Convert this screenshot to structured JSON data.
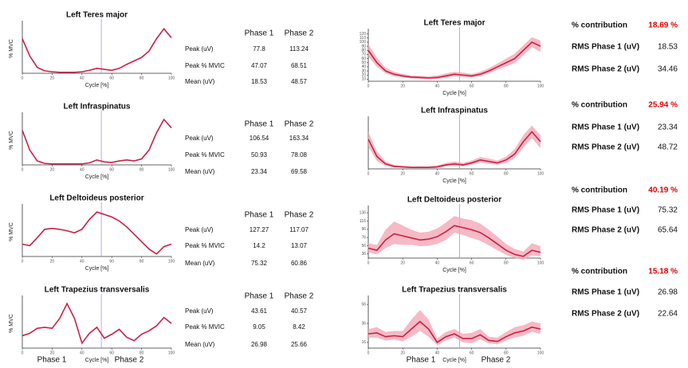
{
  "chart_data": [
    {
      "type": "line",
      "title": "Left Teres major",
      "xlabel": "Cycle [%]",
      "ylabel": "% MVC",
      "xlim": [
        0,
        100
      ],
      "xticks": [
        0,
        20,
        40,
        60,
        80,
        100
      ],
      "ylim": [
        0,
        100
      ],
      "phase_boundary": 53,
      "color": "#cc1f45",
      "x": [
        0,
        5,
        10,
        15,
        20,
        25,
        30,
        35,
        40,
        45,
        50,
        55,
        60,
        65,
        70,
        75,
        80,
        85,
        90,
        95,
        100
      ],
      "values": [
        70,
        35,
        12,
        5,
        3,
        2,
        2,
        2,
        3,
        6,
        10,
        8,
        6,
        10,
        18,
        25,
        32,
        45,
        70,
        90,
        72
      ]
    },
    {
      "type": "line",
      "title": "Left Infraspinatus",
      "xlabel": "Cycle [%]",
      "ylabel": "% MVC",
      "xlim": [
        0,
        100
      ],
      "xticks": [
        0,
        20,
        40,
        60,
        80,
        100
      ],
      "ylim": [
        0,
        100
      ],
      "phase_boundary": 53,
      "color": "#cc1f45",
      "x": [
        0,
        5,
        10,
        15,
        20,
        25,
        30,
        35,
        40,
        45,
        50,
        55,
        60,
        65,
        70,
        75,
        80,
        85,
        90,
        95,
        100
      ],
      "values": [
        70,
        30,
        8,
        3,
        2,
        2,
        2,
        2,
        2,
        4,
        10,
        6,
        5,
        8,
        10,
        8,
        12,
        30,
        65,
        92,
        75
      ]
    },
    {
      "type": "line",
      "title": "Left Deltoideus posterior",
      "xlabel": "Cycle [%]",
      "ylabel": "% MVC",
      "xlim": [
        0,
        100
      ],
      "xticks": [
        0,
        20,
        40,
        60,
        80,
        100
      ],
      "ylim": [
        0,
        100
      ],
      "phase_boundary": 53,
      "color": "#cc1f45",
      "x": [
        0,
        5,
        10,
        15,
        20,
        25,
        30,
        35,
        40,
        45,
        50,
        55,
        60,
        65,
        70,
        75,
        80,
        85,
        90,
        95,
        100
      ],
      "values": [
        25,
        22,
        38,
        55,
        57,
        55,
        52,
        48,
        55,
        75,
        90,
        85,
        80,
        72,
        60,
        45,
        30,
        15,
        5,
        20,
        25
      ]
    },
    {
      "type": "line",
      "title": "Left Trapezius transversalis",
      "xlabel": "Cycle [%]",
      "ylabel": "% MVC",
      "xlim": [
        0,
        100
      ],
      "xticks": [
        0,
        20,
        40,
        60,
        80,
        100
      ],
      "ylim": [
        0,
        100
      ],
      "phase_boundary": 53,
      "color": "#cc1f45",
      "x": [
        0,
        5,
        10,
        15,
        20,
        25,
        30,
        35,
        40,
        45,
        50,
        55,
        60,
        65,
        70,
        75,
        80,
        85,
        90,
        95,
        100
      ],
      "values": [
        25,
        30,
        40,
        42,
        40,
        60,
        90,
        60,
        10,
        30,
        42,
        20,
        28,
        38,
        22,
        15,
        28,
        35,
        45,
        62,
        50
      ]
    },
    {
      "type": "band",
      "title": "Left Teres major",
      "xlabel": "Cycle [%]",
      "xlim": [
        0,
        100
      ],
      "xticks": [
        0,
        20,
        40,
        60,
        80,
        100
      ],
      "ylim": [
        5,
        125
      ],
      "yticks": [
        10,
        20,
        30,
        40,
        50,
        60,
        70,
        80,
        90,
        100,
        110,
        120
      ],
      "phase_boundary": 53,
      "color": "#cc1f45",
      "band_color": "#f2a9b6",
      "x": [
        0,
        5,
        10,
        15,
        20,
        25,
        30,
        35,
        40,
        45,
        50,
        55,
        60,
        65,
        70,
        75,
        80,
        85,
        90,
        95,
        100
      ],
      "values": [
        80,
        50,
        30,
        22,
        18,
        15,
        14,
        13,
        14,
        18,
        22,
        20,
        18,
        22,
        30,
        40,
        50,
        60,
        80,
        100,
        90
      ],
      "upper": [
        95,
        62,
        38,
        28,
        23,
        19,
        18,
        17,
        19,
        24,
        28,
        26,
        23,
        28,
        37,
        48,
        60,
        72,
        92,
        112,
        104
      ],
      "lower": [
        65,
        40,
        24,
        17,
        14,
        12,
        11,
        10,
        10,
        13,
        17,
        15,
        14,
        17,
        24,
        33,
        41,
        49,
        68,
        88,
        76
      ]
    },
    {
      "type": "band",
      "title": "Left Infraspinatus",
      "xlabel": "Cycle [%]",
      "xlim": [
        0,
        100
      ],
      "xticks": [
        0,
        20,
        40,
        60,
        80,
        100
      ],
      "ylim": [
        0,
        100
      ],
      "phase_boundary": 53,
      "color": "#cc1f45",
      "band_color": "#f2a9b6",
      "x": [
        0,
        5,
        10,
        15,
        20,
        25,
        30,
        35,
        40,
        45,
        50,
        55,
        60,
        65,
        70,
        75,
        80,
        85,
        90,
        95,
        100
      ],
      "values": [
        60,
        25,
        10,
        5,
        4,
        3,
        3,
        3,
        4,
        8,
        10,
        8,
        12,
        18,
        15,
        12,
        18,
        30,
        55,
        75,
        55
      ],
      "upper": [
        75,
        35,
        15,
        8,
        6,
        5,
        5,
        5,
        7,
        12,
        15,
        12,
        17,
        24,
        21,
        17,
        25,
        40,
        68,
        88,
        68
      ],
      "lower": [
        45,
        16,
        6,
        3,
        2,
        2,
        2,
        2,
        2,
        5,
        6,
        5,
        8,
        13,
        10,
        8,
        12,
        22,
        43,
        62,
        42
      ]
    },
    {
      "type": "band",
      "title": "Left Deltoideus posterior",
      "xlabel": "Cycle [%]",
      "xlim": [
        0,
        100
      ],
      "xticks": [
        0,
        20,
        40,
        60,
        80,
        100
      ],
      "ylim": [
        26,
        146
      ],
      "yticks": [
        36,
        56,
        76,
        96,
        116,
        136
      ],
      "phase_boundary": 53,
      "color": "#cc1f45",
      "band_color": "#f2a9b6",
      "x": [
        0,
        5,
        10,
        15,
        20,
        25,
        30,
        35,
        40,
        45,
        50,
        55,
        60,
        65,
        70,
        75,
        80,
        85,
        90,
        95,
        100
      ],
      "values": [
        50,
        45,
        70,
        85,
        80,
        75,
        70,
        72,
        78,
        90,
        105,
        100,
        95,
        88,
        75,
        60,
        45,
        35,
        30,
        45,
        40
      ],
      "upper": [
        62,
        58,
        95,
        115,
        105,
        95,
        88,
        90,
        98,
        112,
        128,
        122,
        118,
        110,
        95,
        78,
        60,
        48,
        42,
        62,
        55
      ],
      "lower": [
        40,
        35,
        50,
        60,
        58,
        58,
        55,
        56,
        60,
        70,
        88,
        82,
        75,
        68,
        57,
        45,
        34,
        26,
        22,
        32,
        30
      ]
    },
    {
      "type": "band",
      "title": "Left Trapezius transversalis",
      "xlabel": "Cycle [%]",
      "xlim": [
        0,
        100
      ],
      "xticks": [
        0,
        20,
        40,
        60,
        80,
        100
      ],
      "ylim": [
        10,
        62
      ],
      "yticks": [
        16,
        36,
        56
      ],
      "phase_boundary": 53,
      "color": "#cc1f45",
      "band_color": "#f2a9b6",
      "x": [
        0,
        5,
        10,
        15,
        20,
        25,
        30,
        35,
        40,
        45,
        50,
        55,
        60,
        65,
        70,
        75,
        80,
        85,
        90,
        95,
        100
      ],
      "values": [
        25,
        26,
        22,
        23,
        22,
        30,
        38,
        30,
        16,
        22,
        25,
        20,
        20,
        24,
        18,
        17,
        22,
        26,
        28,
        32,
        30
      ],
      "upper": [
        30,
        32,
        27,
        28,
        28,
        40,
        50,
        40,
        20,
        27,
        30,
        25,
        26,
        30,
        22,
        21,
        27,
        32,
        34,
        38,
        36
      ],
      "lower": [
        21,
        21,
        18,
        19,
        17,
        22,
        28,
        22,
        13,
        18,
        21,
        16,
        15,
        19,
        15,
        14,
        18,
        21,
        23,
        27,
        25
      ]
    }
  ],
  "left_tables": [
    {
      "columns": [
        "Phase 1",
        "Phase 2"
      ],
      "rows": [
        [
          "Peak (uV)",
          77.8,
          113.24
        ],
        [
          "Peak % MVIC",
          47.07,
          68.51
        ],
        [
          "Mean (uV)",
          18.53,
          48.57
        ]
      ]
    },
    {
      "columns": [
        "Phase 1",
        "Phase 2"
      ],
      "rows": [
        [
          "Peak (uV)",
          106.54,
          163.34
        ],
        [
          "Peak % MVIC",
          50.93,
          78.08
        ],
        [
          "Mean (uV)",
          23.34,
          69.58
        ]
      ]
    },
    {
      "columns": [
        "Phase 1",
        "Phase 2"
      ],
      "rows": [
        [
          "Peak (uV)",
          127.27,
          117.07
        ],
        [
          "Peak % MVIC",
          14.2,
          13.07
        ],
        [
          "Mean (uV)",
          75.32,
          60.86
        ]
      ]
    },
    {
      "columns": [
        "Phase 1",
        "Phase 2"
      ],
      "rows": [
        [
          "Peak (uV)",
          43.61,
          40.57
        ],
        [
          "Peak % MVIC",
          9.05,
          8.42
        ],
        [
          "Mean (uV)",
          26.98,
          25.66
        ]
      ]
    }
  ],
  "right_tables": [
    {
      "rows": [
        [
          "% contribution",
          "18.69 %"
        ],
        [
          "RMS Phase 1 (uV)",
          18.53
        ],
        [
          "RMS Phase 2 (uV)",
          34.46
        ]
      ]
    },
    {
      "rows": [
        [
          "% contribution",
          "25.94 %"
        ],
        [
          "RMS Phase 1 (uV)",
          23.34
        ],
        [
          "RMS Phase 2 (uV)",
          48.72
        ]
      ]
    },
    {
      "rows": [
        [
          "% contribution",
          "40.19 %"
        ],
        [
          "RMS Phase 1 (uV)",
          75.32
        ],
        [
          "RMS Phase 2 (uV)",
          65.64
        ]
      ]
    },
    {
      "rows": [
        [
          "% contribution",
          "15.18 %"
        ],
        [
          "RMS Phase 1 (uV)",
          26.98
        ],
        [
          "RMS Phase 2 (uV)",
          22.64
        ]
      ]
    }
  ],
  "footer": {
    "left": [
      "Phase 1",
      "Phase 2"
    ],
    "right": [
      "Phase 1",
      "Phase 2"
    ]
  }
}
